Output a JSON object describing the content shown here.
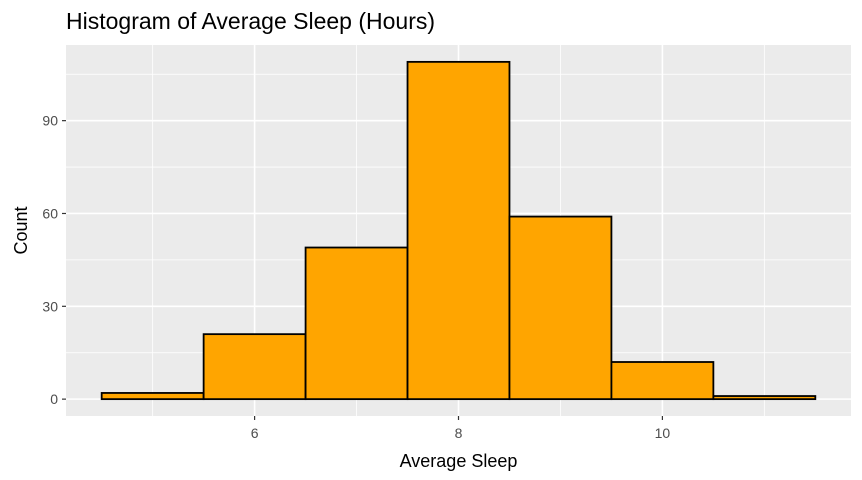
{
  "chart_data": {
    "type": "bar",
    "title": "Histogram of Average Sleep (Hours)",
    "xlabel": "Average Sleep",
    "ylabel": "Count",
    "bins": [
      {
        "start": 4.5,
        "end": 5.5,
        "count": 2
      },
      {
        "start": 5.5,
        "end": 6.5,
        "count": 21
      },
      {
        "start": 6.5,
        "end": 7.5,
        "count": 49
      },
      {
        "start": 7.5,
        "end": 8.5,
        "count": 109
      },
      {
        "start": 8.5,
        "end": 9.5,
        "count": 59
      },
      {
        "start": 9.5,
        "end": 10.5,
        "count": 12
      },
      {
        "start": 10.5,
        "end": 11.5,
        "count": 1
      }
    ],
    "xlim": [
      4.15,
      11.85
    ],
    "ylim": [
      -5.45,
      114.45
    ],
    "x_ticks": [
      6,
      8,
      10
    ],
    "x_tick_labels": [
      "6",
      "8",
      "10"
    ],
    "x_minor_ticks": [
      5,
      7,
      9,
      11
    ],
    "y_ticks": [
      0,
      30,
      60,
      90
    ],
    "y_tick_labels": [
      "0",
      "30",
      "60",
      "90"
    ],
    "y_minor_ticks": [
      15,
      45,
      75,
      105
    ],
    "grid": true,
    "legend": "none",
    "colors": {
      "bar_fill": "#FFA500",
      "bar_outline": "#000000",
      "panel_background": "#EBEBEB",
      "grid": "#FFFFFF",
      "tick_text": "#4D4D4D"
    }
  }
}
